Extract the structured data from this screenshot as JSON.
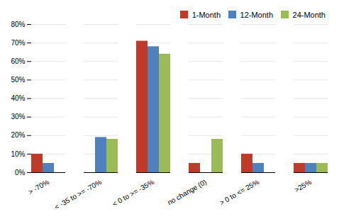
{
  "chart_data": {
    "type": "bar",
    "categories": [
      "> -70%",
      "< -35 to >= -70%",
      "< 0 to >= -35%",
      "no change (0)",
      "> 0 to <= 25%",
      ">25%"
    ],
    "series": [
      {
        "name": "1-Month",
        "color": "#BE3B2A",
        "values": [
          0.1,
          0.0,
          0.71,
          0.05,
          0.1,
          0.05
        ]
      },
      {
        "name": "12-Month",
        "color": "#4F81BD",
        "values": [
          0.05,
          0.19,
          0.68,
          0.0,
          0.05,
          0.05
        ]
      },
      {
        "name": "24-Month",
        "color": "#9BBB59",
        "values": [
          0.0,
          0.18,
          0.64,
          0.18,
          0.0,
          0.05
        ]
      }
    ],
    "ylim": [
      0,
      0.8
    ],
    "yticks": [
      {
        "value": 0.0,
        "label": "0%"
      },
      {
        "value": 0.1,
        "label": "10%"
      },
      {
        "value": 0.2,
        "label": "20%"
      },
      {
        "value": 0.3,
        "label": "30%"
      },
      {
        "value": 0.4,
        "label": "40%"
      },
      {
        "value": 0.5,
        "label": "50%"
      },
      {
        "value": 0.6,
        "label": "60%"
      },
      {
        "value": 0.7,
        "label": "70%"
      },
      {
        "value": 0.8,
        "label": "80%"
      }
    ],
    "grid": true,
    "legend": "upper right"
  }
}
